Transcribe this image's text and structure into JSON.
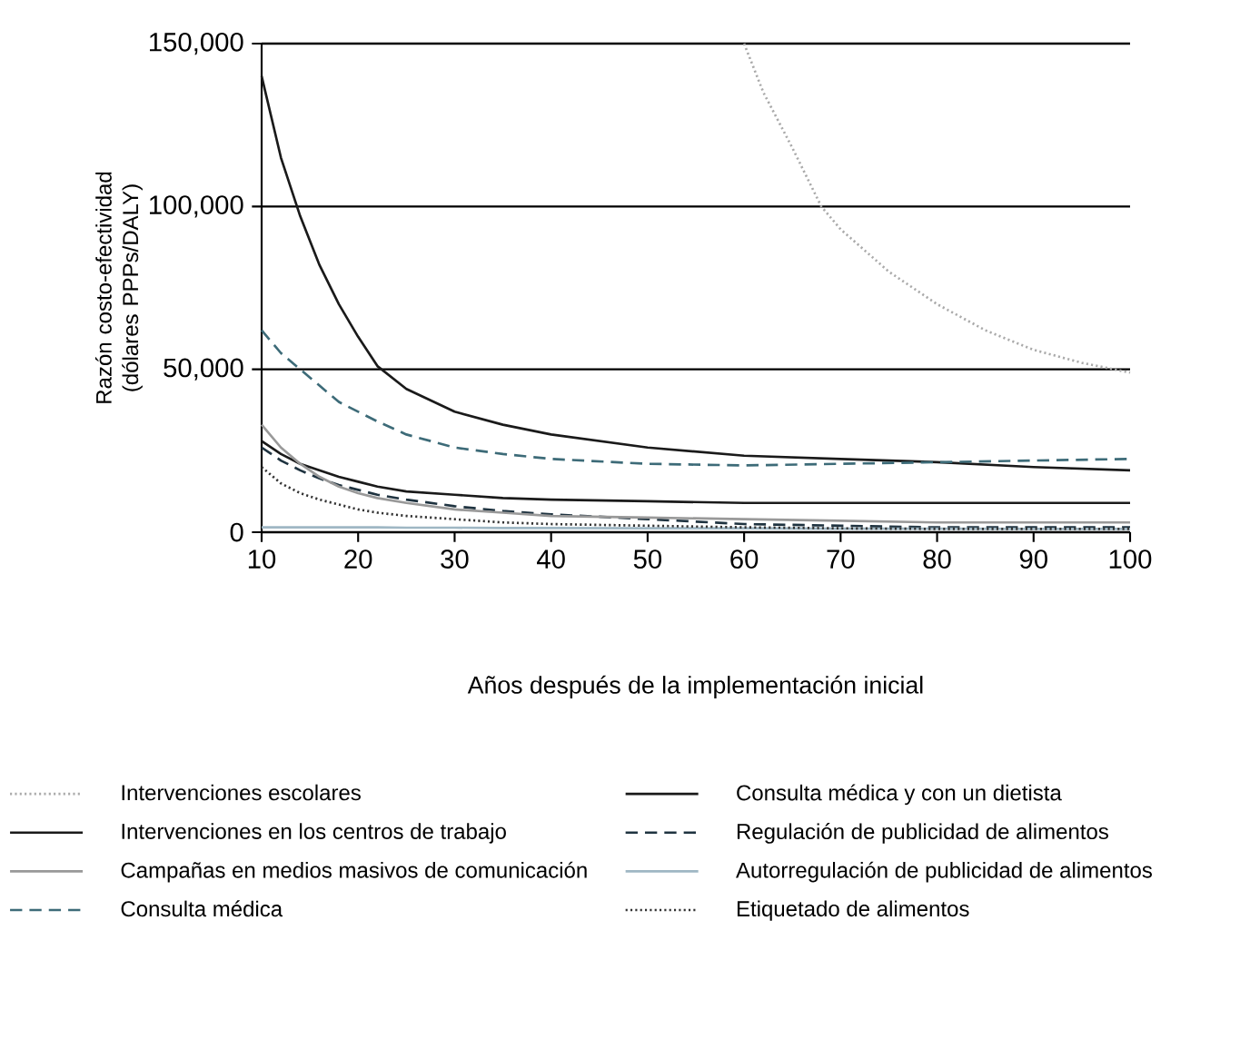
{
  "chart_data": {
    "type": "line",
    "xlabel": "Años después de la implementación inicial",
    "ylabel": "Razón costo-efectividad (dólares PPPs/DALY)",
    "xlim": [
      10,
      100
    ],
    "xticks": [
      10,
      20,
      30,
      40,
      50,
      60,
      70,
      80,
      90,
      100
    ],
    "ylim": [
      0,
      150000
    ],
    "yticks": [
      0,
      {
        "value": 50000,
        "label": "50,000"
      },
      {
        "value": 100000,
        "label": "100,000"
      },
      {
        "value": 150000,
        "label": "150,000"
      }
    ],
    "grid": "y",
    "legend": "bottom",
    "marker": "none",
    "series": [
      {
        "name": "Intervenciones escolares",
        "color": "#aaaaaa",
        "line_style": "dotted",
        "x": [
          60,
          62,
          65,
          68,
          70,
          75,
          80,
          85,
          90,
          95,
          100
        ],
        "values": [
          150000,
          135000,
          118000,
          100000,
          93000,
          80000,
          70000,
          62000,
          56000,
          52000,
          49000
        ]
      },
      {
        "name": "Consulta médica y con un dietista",
        "color": "#1a1a1a",
        "line_style": "solid",
        "x": [
          10,
          12,
          14,
          16,
          18,
          20,
          22,
          25,
          30,
          35,
          40,
          50,
          60,
          70,
          80,
          90,
          100
        ],
        "values": [
          28000,
          24000,
          21000,
          19000,
          17000,
          15500,
          14000,
          12500,
          11500,
          10500,
          10000,
          9500,
          9000,
          9000,
          9000,
          9000,
          9000
        ]
      },
      {
        "name": "Intervenciones en los centros de trabajo",
        "color": "#1a1a1a",
        "line_style": "solid",
        "x": [
          10,
          12,
          14,
          16,
          18,
          20,
          22,
          25,
          30,
          35,
          40,
          50,
          60,
          70,
          80,
          90,
          100
        ],
        "values": [
          140000,
          115000,
          97000,
          82000,
          70000,
          60000,
          51000,
          44000,
          37000,
          33000,
          30000,
          26000,
          23500,
          22500,
          21500,
          20000,
          19000
        ]
      },
      {
        "name": "Regulación de publicidad de alimentos",
        "color": "#1f3340",
        "line_style": "dashed",
        "x": [
          10,
          12,
          14,
          16,
          18,
          20,
          22,
          25,
          30,
          35,
          40,
          50,
          60,
          70,
          80,
          90,
          100
        ],
        "values": [
          26000,
          22000,
          19000,
          16500,
          14500,
          13000,
          11500,
          10000,
          8000,
          6500,
          5500,
          4000,
          2500,
          2000,
          1500,
          1500,
          1500
        ]
      },
      {
        "name": "Campañas en medios masivos de comunicación",
        "color": "#999999",
        "line_style": "solid",
        "x": [
          10,
          12,
          14,
          16,
          18,
          20,
          22,
          25,
          30,
          35,
          40,
          50,
          60,
          70,
          80,
          90,
          100
        ],
        "values": [
          33000,
          26000,
          21000,
          17000,
          14000,
          12000,
          10500,
          9000,
          7000,
          6000,
          5000,
          4500,
          4000,
          3500,
          3000,
          3000,
          3000
        ]
      },
      {
        "name": "Autorregulación de publicidad de alimentos",
        "color": "#9fb7c4",
        "line_style": "solid",
        "x": [
          10,
          12,
          14,
          16,
          18,
          20,
          22,
          25,
          30,
          35,
          40,
          50,
          60,
          70,
          80,
          90,
          100
        ],
        "values": [
          1500,
          1500,
          1500,
          1500,
          1500,
          1500,
          1500,
          1400,
          1400,
          1300,
          1300,
          1200,
          1200,
          1100,
          1100,
          1000,
          1000
        ]
      },
      {
        "name": "Consulta médica",
        "color": "#3d6b78",
        "line_style": "dashed",
        "x": [
          10,
          12,
          14,
          16,
          18,
          20,
          22,
          25,
          30,
          35,
          40,
          50,
          60,
          70,
          80,
          90,
          100
        ],
        "values": [
          62000,
          55000,
          50000,
          45000,
          40000,
          37000,
          34000,
          30000,
          26000,
          24000,
          22500,
          21000,
          20500,
          21000,
          21500,
          22000,
          22500
        ]
      },
      {
        "name": "Etiquetado de alimentos",
        "color": "#333333",
        "line_style": "dotted",
        "x": [
          10,
          12,
          14,
          16,
          18,
          20,
          22,
          25,
          30,
          35,
          40,
          50,
          60,
          70,
          80,
          90,
          100
        ],
        "values": [
          20000,
          15000,
          12000,
          10000,
          8500,
          7000,
          6000,
          5000,
          4000,
          3000,
          2500,
          2000,
          1500,
          1200,
          1000,
          1000,
          1000
        ]
      }
    ]
  }
}
